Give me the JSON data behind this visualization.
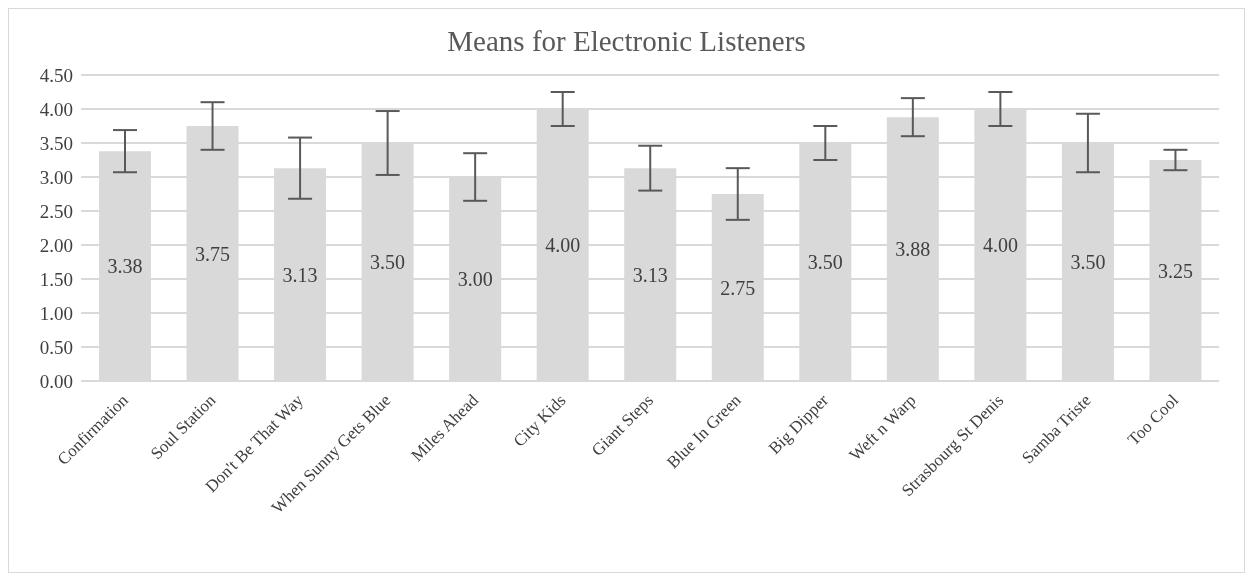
{
  "chart_data": {
    "type": "bar",
    "title": "Means for Electronic Listeners",
    "categories": [
      "Confirmation",
      "Soul Station",
      "Don't Be That Way",
      "When Sunny Gets Blue",
      "Miles Ahead",
      "City Kids",
      "Giant Steps",
      "Blue In Green",
      "Big Dipper",
      "Weft n Warp",
      "Strasbourg St Denis",
      "Samba Triste",
      "Too Cool"
    ],
    "values": [
      3.38,
      3.75,
      3.13,
      3.5,
      3.0,
      4.0,
      3.13,
      2.75,
      3.5,
      3.88,
      4.0,
      3.5,
      3.25
    ],
    "errors": [
      0.31,
      0.35,
      0.45,
      0.47,
      0.35,
      0.25,
      0.33,
      0.38,
      0.25,
      0.28,
      0.25,
      0.43,
      0.15
    ],
    "value_labels": [
      "3.38",
      "3.75",
      "3.13",
      "3.50",
      "3.00",
      "4.00",
      "3.13",
      "2.75",
      "3.50",
      "3.88",
      "4.00",
      "3.50",
      "3.25"
    ],
    "color": "#d9d9d9",
    "ylim": [
      0,
      4.5
    ],
    "yticks": [
      {
        "value": 0,
        "label": "0.00"
      },
      {
        "value": 0.5,
        "label": "0.50"
      },
      {
        "value": 1,
        "label": "1.00"
      },
      {
        "value": 1.5,
        "label": "1.50"
      },
      {
        "value": 2,
        "label": "2.00"
      },
      {
        "value": 2.5,
        "label": "2.50"
      },
      {
        "value": 3,
        "label": "3.00"
      },
      {
        "value": 3.5,
        "label": "3.50"
      },
      {
        "value": 4,
        "label": "4.00"
      },
      {
        "value": 4.5,
        "label": "4.50"
      }
    ],
    "grid": "y"
  }
}
